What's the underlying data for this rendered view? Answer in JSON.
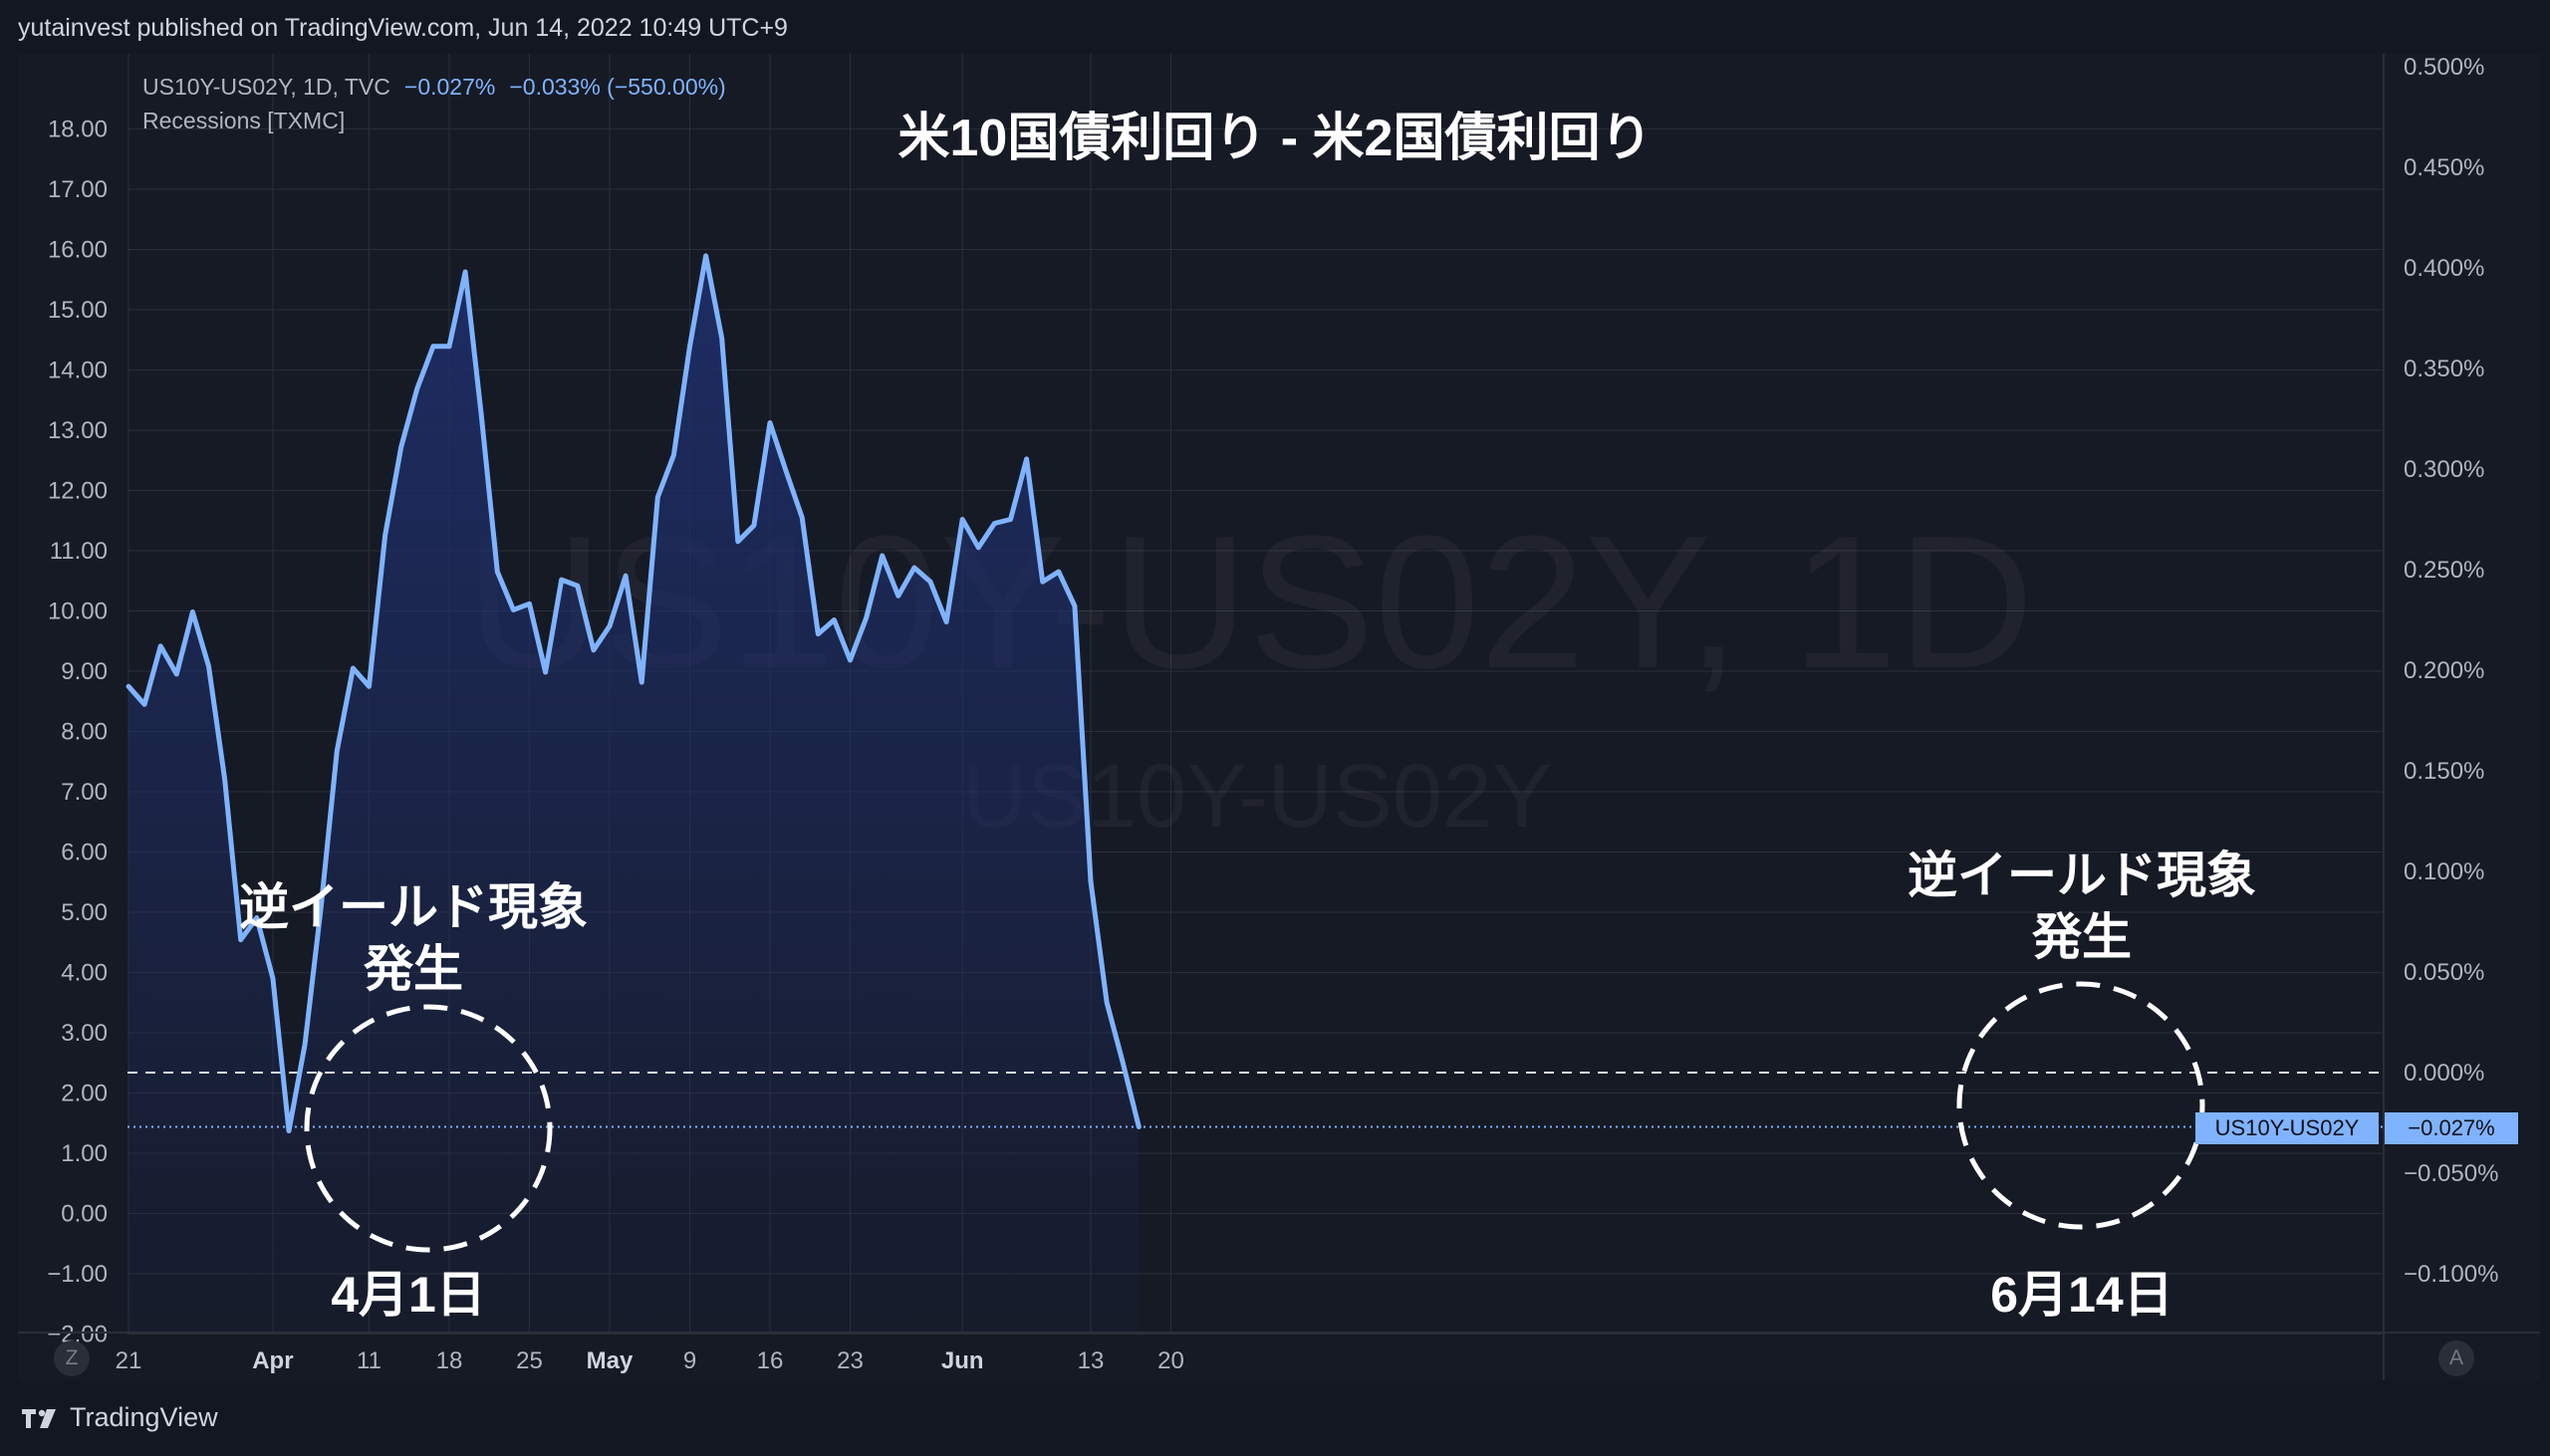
{
  "header": {
    "published": "yutainvest published on TradingView.com, Jun 14, 2022 10:49 UTC+9"
  },
  "legend": {
    "symbol": "US10Y-US02Y, 1D, TVC",
    "last": "−0.027%",
    "change": "−0.033% (−550.00%)",
    "indicator": "Recessions [TXMC]"
  },
  "title": "米10国債利回り - 米2国債利回り",
  "watermark": {
    "main": "US10Y-US02Y, 1D",
    "sub": "US10Y-US02Y"
  },
  "annotations": {
    "left_label_line1": "逆イールド現象",
    "left_label_line2": "発生",
    "left_date": "4月1日",
    "right_label_line1": "逆イールド現象",
    "right_label_line2": "発生",
    "right_date": "6月14日"
  },
  "price_tag": {
    "symbol": "US10Y-US02Y",
    "value": "−0.027%"
  },
  "buttons": {
    "z": "Z",
    "a": "A"
  },
  "footer": {
    "brand": "TradingView"
  },
  "colors": {
    "line": "#7fb3ff",
    "background": "#131722",
    "fill_top": "#1e2d66"
  },
  "chart_data": {
    "type": "area",
    "left_axis": {
      "labels": [
        "18.00",
        "17.00",
        "16.00",
        "15.00",
        "14.00",
        "13.00",
        "12.00",
        "11.00",
        "10.00",
        "9.00",
        "8.00",
        "7.00",
        "6.00",
        "5.00",
        "4.00",
        "3.00",
        "2.00",
        "1.00",
        "0.00",
        "−1.00",
        "−2.00"
      ],
      "range": [
        -2,
        18
      ]
    },
    "right_axis": {
      "labels": [
        "0.500%",
        "0.450%",
        "0.400%",
        "0.350%",
        "0.300%",
        "0.250%",
        "0.200%",
        "0.150%",
        "0.100%",
        "0.050%",
        "0.000%",
        "−0.050%",
        "−0.100%"
      ],
      "range_percent": [
        -0.1,
        0.5
      ]
    },
    "x_axis": {
      "ticks": [
        {
          "index": 0,
          "label": "21"
        },
        {
          "index": 9,
          "label": "Apr"
        },
        {
          "index": 15,
          "label": "11"
        },
        {
          "index": 20,
          "label": "18"
        },
        {
          "index": 25,
          "label": "25"
        },
        {
          "index": 30,
          "label": "May"
        },
        {
          "index": 35,
          "label": "9"
        },
        {
          "index": 40,
          "label": "16"
        },
        {
          "index": 45,
          "label": "23"
        },
        {
          "index": 52,
          "label": "Jun"
        },
        {
          "index": 60,
          "label": "13"
        },
        {
          "index": 65,
          "label": "20"
        }
      ],
      "max_index": 70.2
    },
    "series": [
      {
        "values_percent": [
          0.192,
          0.183,
          0.212,
          0.198,
          0.229,
          0.202,
          0.146,
          0.066,
          0.077,
          0.047,
          -0.029,
          0.014,
          0.082,
          0.16,
          0.201,
          0.192,
          0.267,
          0.311,
          0.34,
          0.361,
          0.361,
          0.398,
          0.327,
          0.249,
          0.23,
          0.233,
          0.199,
          0.245,
          0.242,
          0.21,
          0.222,
          0.247,
          0.194,
          0.286,
          0.307,
          0.361,
          0.406,
          0.365,
          0.264,
          0.272,
          0.323,
          0.299,
          0.276,
          0.218,
          0.225,
          0.205,
          0.226,
          0.257,
          0.237,
          0.251,
          0.244,
          0.224,
          0.275,
          0.261,
          0.273,
          0.275,
          0.305,
          0.244,
          0.249,
          0.232,
          0.095,
          0.035,
          0.005,
          -0.027
        ]
      }
    ],
    "reference_lines": [
      {
        "value_percent": 0.0,
        "style": "dashed"
      },
      {
        "value_percent": -0.027,
        "style": "dotted"
      }
    ],
    "grid": true
  }
}
